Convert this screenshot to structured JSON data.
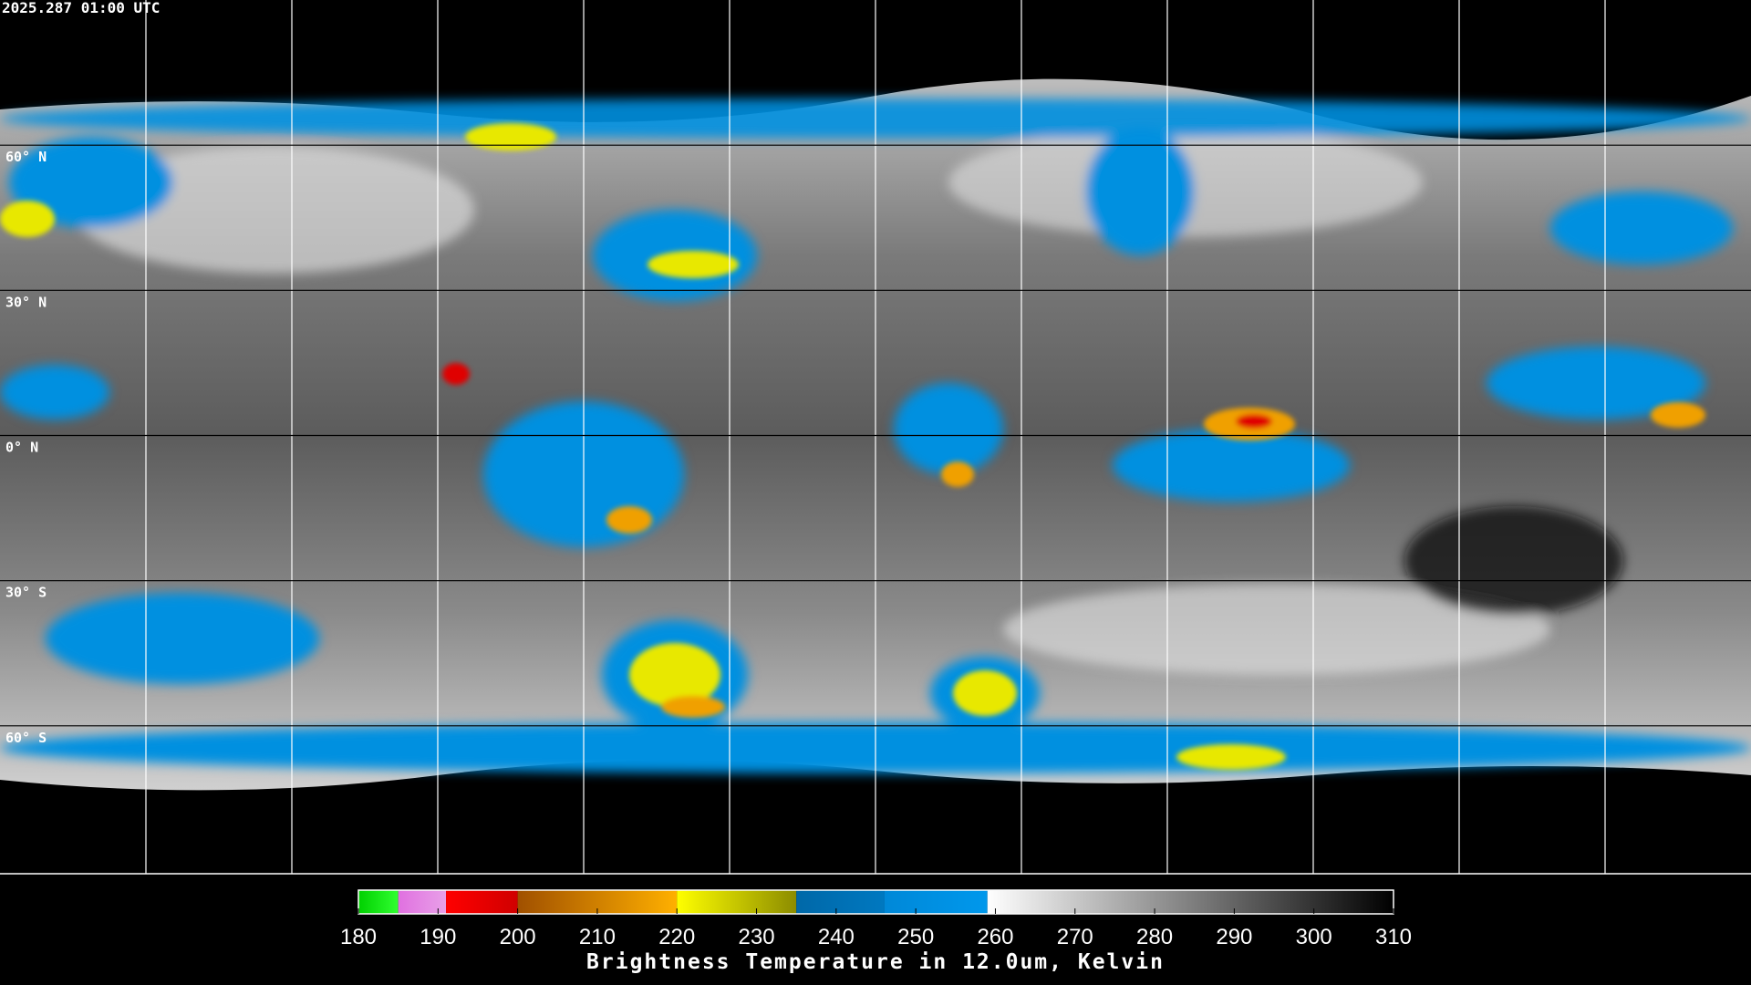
{
  "header": {
    "timestamp": "2025.287 01:00 UTC"
  },
  "map": {
    "lat_labels": [
      {
        "value": 60,
        "label": "60° N"
      },
      {
        "value": 30,
        "label": "30° N"
      },
      {
        "value": 0,
        "label": "0° N"
      },
      {
        "value": -30,
        "label": "30° S"
      },
      {
        "value": -60,
        "label": "60° S"
      }
    ]
  },
  "colorbar": {
    "title": "Brightness Temperature in 12.0um, Kelvin",
    "lim": [
      180,
      310
    ],
    "ticks": [
      180,
      190,
      200,
      210,
      220,
      230,
      240,
      250,
      260,
      270,
      280,
      290,
      300,
      310
    ],
    "segments": [
      {
        "from": 180,
        "to": 185,
        "colors": [
          "#00d000",
          "#30ff30"
        ]
      },
      {
        "from": 185,
        "to": 191,
        "colors": [
          "#e070e0",
          "#e8a0e8"
        ]
      },
      {
        "from": 191,
        "to": 200,
        "colors": [
          "#ff0000",
          "#d00000"
        ]
      },
      {
        "from": 200,
        "to": 220,
        "colors": [
          "#a05000",
          "#ffb000"
        ]
      },
      {
        "from": 220,
        "to": 235,
        "colors": [
          "#ffff00",
          "#8c8c00"
        ]
      },
      {
        "from": 235,
        "to": 246,
        "colors": [
          "#0068a8",
          "#0078c0"
        ]
      },
      {
        "from": 246,
        "to": 259,
        "colors": [
          "#0088d8",
          "#0098ec"
        ]
      },
      {
        "from": 259,
        "to": 310,
        "colors": [
          "#ffffff",
          "#000000"
        ]
      }
    ]
  }
}
